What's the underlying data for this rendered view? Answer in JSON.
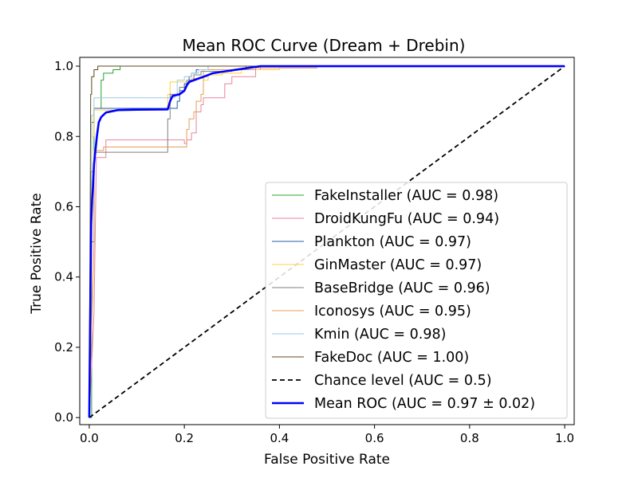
{
  "chart_data": {
    "type": "line",
    "title": "Mean ROC Curve (Dream + Drebin)",
    "xlabel": "False Positive Rate",
    "ylabel": "True Positive Rate",
    "xlim": [
      -0.02,
      1.02
    ],
    "ylim": [
      -0.02,
      1.025
    ],
    "xticks": [
      0.0,
      0.2,
      0.4,
      0.6,
      0.8,
      1.0
    ],
    "yticks": [
      0.0,
      0.2,
      0.4,
      0.6,
      0.8,
      1.0
    ],
    "tick_labels_x": [
      "0.0",
      "0.2",
      "0.4",
      "0.6",
      "0.8",
      "1.0"
    ],
    "tick_labels_y": [
      "0.0",
      "0.2",
      "0.4",
      "0.6",
      "0.8",
      "1.0"
    ],
    "legend_position": "lower right",
    "series": [
      {
        "name": "FakeInstaller",
        "label": "FakeInstaller (AUC = 0.98)",
        "color": "#2ca02c",
        "style": "solid",
        "width": 1,
        "points": [
          [
            0,
            0
          ],
          [
            0.005,
            0.0
          ],
          [
            0.005,
            0.5
          ],
          [
            0.01,
            0.5
          ],
          [
            0.01,
            0.88
          ],
          [
            0.025,
            0.88
          ],
          [
            0.025,
            0.96
          ],
          [
            0.03,
            0.96
          ],
          [
            0.03,
            0.98
          ],
          [
            0.05,
            0.98
          ],
          [
            0.05,
            0.99
          ],
          [
            0.065,
            0.99
          ],
          [
            0.065,
            1.0
          ],
          [
            1,
            1
          ]
        ]
      },
      {
        "name": "DroidKungFu",
        "label": "DroidKungFu (AUC = 0.94)",
        "color": "#e8839b",
        "style": "solid",
        "width": 1,
        "points": [
          [
            0,
            0
          ],
          [
            0.01,
            0.3
          ],
          [
            0.015,
            0.74
          ],
          [
            0.035,
            0.74
          ],
          [
            0.035,
            0.79
          ],
          [
            0.2,
            0.79
          ],
          [
            0.2,
            0.78
          ],
          [
            0.205,
            0.78
          ],
          [
            0.205,
            0.79
          ],
          [
            0.215,
            0.79
          ],
          [
            0.215,
            0.81
          ],
          [
            0.225,
            0.81
          ],
          [
            0.225,
            0.87
          ],
          [
            0.235,
            0.87
          ],
          [
            0.235,
            0.89
          ],
          [
            0.24,
            0.89
          ],
          [
            0.24,
            0.91
          ],
          [
            0.285,
            0.91
          ],
          [
            0.285,
            0.95
          ],
          [
            0.3,
            0.95
          ],
          [
            0.3,
            0.97
          ],
          [
            0.35,
            0.97
          ],
          [
            0.35,
            0.99
          ],
          [
            0.36,
            0.99
          ],
          [
            0.36,
            1.0
          ],
          [
            1,
            1
          ]
        ]
      },
      {
        "name": "Plankton",
        "label": "Plankton (AUC = 0.97)",
        "color": "#1f5fa8",
        "style": "solid",
        "width": 1,
        "points": [
          [
            0,
            0
          ],
          [
            0.005,
            0.5
          ],
          [
            0.005,
            0.84
          ],
          [
            0.01,
            0.84
          ],
          [
            0.01,
            0.88
          ],
          [
            0.185,
            0.88
          ],
          [
            0.185,
            0.9
          ],
          [
            0.19,
            0.9
          ],
          [
            0.19,
            0.93
          ],
          [
            0.2,
            0.93
          ],
          [
            0.2,
            0.95
          ],
          [
            0.21,
            0.95
          ],
          [
            0.21,
            0.97
          ],
          [
            0.215,
            0.97
          ],
          [
            0.215,
            0.98
          ],
          [
            0.225,
            0.98
          ],
          [
            0.225,
            0.99
          ],
          [
            0.25,
            0.99
          ],
          [
            0.25,
            1.0
          ],
          [
            1,
            1
          ]
        ]
      },
      {
        "name": "GinMaster",
        "label": "GinMaster (AUC = 0.97)",
        "color": "#ffd23f",
        "style": "solid",
        "width": 1,
        "points": [
          [
            0,
            0
          ],
          [
            0.005,
            0.4
          ],
          [
            0.005,
            0.8
          ],
          [
            0.01,
            0.8
          ],
          [
            0.01,
            0.875
          ],
          [
            0.165,
            0.875
          ],
          [
            0.165,
            0.92
          ],
          [
            0.17,
            0.92
          ],
          [
            0.17,
            0.955
          ],
          [
            0.215,
            0.955
          ],
          [
            0.215,
            0.965
          ],
          [
            0.24,
            0.965
          ],
          [
            0.24,
            0.96
          ],
          [
            0.25,
            0.96
          ],
          [
            0.25,
            0.975
          ],
          [
            0.28,
            0.975
          ],
          [
            0.28,
            0.98
          ],
          [
            0.32,
            0.98
          ],
          [
            0.32,
            0.99
          ],
          [
            0.4,
            0.99
          ],
          [
            0.4,
            0.995
          ],
          [
            0.48,
            0.995
          ]
        ]
      },
      {
        "name": "BaseBridge",
        "label": "BaseBridge (AUC = 0.96)",
        "color": "#7f7f7f",
        "style": "solid",
        "width": 1,
        "points": [
          [
            0,
            0
          ],
          [
            0.003,
            0.55
          ],
          [
            0.003,
            0.7
          ],
          [
            0.01,
            0.7
          ],
          [
            0.01,
            0.755
          ],
          [
            0.165,
            0.755
          ],
          [
            0.165,
            0.85
          ],
          [
            0.17,
            0.85
          ],
          [
            0.17,
            0.92
          ],
          [
            0.19,
            0.92
          ],
          [
            0.19,
            0.94
          ],
          [
            0.205,
            0.94
          ],
          [
            0.205,
            0.96
          ],
          [
            0.22,
            0.96
          ],
          [
            0.22,
            0.975
          ],
          [
            0.235,
            0.975
          ],
          [
            0.235,
            0.985
          ],
          [
            0.3,
            0.985
          ],
          [
            0.3,
            0.99
          ],
          [
            0.33,
            0.99
          ],
          [
            0.33,
            1.0
          ],
          [
            1,
            1
          ]
        ]
      },
      {
        "name": "Iconosys",
        "label": "Iconosys (AUC = 0.95)",
        "color": "#e69c5c",
        "style": "solid",
        "width": 1,
        "points": [
          [
            0,
            0
          ],
          [
            0.01,
            0.5
          ],
          [
            0.01,
            0.76
          ],
          [
            0.03,
            0.76
          ],
          [
            0.03,
            0.77
          ],
          [
            0.205,
            0.77
          ],
          [
            0.205,
            0.82
          ],
          [
            0.21,
            0.82
          ],
          [
            0.21,
            0.85
          ],
          [
            0.22,
            0.85
          ],
          [
            0.22,
            0.87
          ],
          [
            0.225,
            0.87
          ],
          [
            0.225,
            0.9
          ],
          [
            0.235,
            0.9
          ],
          [
            0.235,
            0.92
          ],
          [
            0.24,
            0.92
          ],
          [
            0.24,
            0.99
          ],
          [
            0.35,
            0.99
          ],
          [
            0.35,
            0.995
          ],
          [
            0.48,
            0.995
          ]
        ]
      },
      {
        "name": "Kmin",
        "label": "Kmin (AUC = 0.98)",
        "color": "#9ecae1",
        "style": "solid",
        "width": 1,
        "points": [
          [
            0,
            0
          ],
          [
            0.005,
            0.6
          ],
          [
            0.005,
            0.86
          ],
          [
            0.01,
            0.86
          ],
          [
            0.01,
            0.91
          ],
          [
            0.18,
            0.91
          ],
          [
            0.18,
            0.92
          ],
          [
            0.185,
            0.92
          ],
          [
            0.185,
            0.96
          ],
          [
            0.2,
            0.96
          ],
          [
            0.2,
            0.97
          ],
          [
            0.215,
            0.97
          ],
          [
            0.215,
            0.98
          ],
          [
            0.23,
            0.98
          ],
          [
            0.23,
            0.99
          ],
          [
            0.25,
            0.99
          ],
          [
            0.25,
            1.0
          ],
          [
            1,
            1
          ]
        ]
      },
      {
        "name": "FakeDoc",
        "label": "FakeDoc (AUC = 1.00)",
        "color": "#5c4a1e",
        "style": "solid",
        "width": 1,
        "points": [
          [
            0,
            0
          ],
          [
            0.003,
            0.92
          ],
          [
            0.005,
            0.92
          ],
          [
            0.005,
            0.97
          ],
          [
            0.01,
            0.97
          ],
          [
            0.01,
            0.99
          ],
          [
            0.018,
            0.99
          ],
          [
            0.018,
            1.0
          ],
          [
            1,
            1
          ]
        ]
      },
      {
        "name": "Chance level",
        "label": "Chance level (AUC = 0.5)",
        "color": "#000000",
        "style": "dashed",
        "width": 1.8,
        "points": [
          [
            0,
            0
          ],
          [
            1,
            1
          ]
        ]
      },
      {
        "name": "Mean ROC",
        "label": "Mean ROC (AUC = 0.97 ± 0.02)",
        "color": "#0000ff",
        "style": "solid",
        "width": 2.6,
        "points": [
          [
            0,
            0
          ],
          [
            0.002,
            0.3
          ],
          [
            0.004,
            0.55
          ],
          [
            0.006,
            0.62
          ],
          [
            0.008,
            0.66
          ],
          [
            0.01,
            0.72
          ],
          [
            0.013,
            0.76
          ],
          [
            0.016,
            0.8
          ],
          [
            0.02,
            0.84
          ],
          [
            0.025,
            0.855
          ],
          [
            0.035,
            0.868
          ],
          [
            0.06,
            0.875
          ],
          [
            0.1,
            0.876
          ],
          [
            0.165,
            0.877
          ],
          [
            0.17,
            0.9
          ],
          [
            0.175,
            0.915
          ],
          [
            0.19,
            0.92
          ],
          [
            0.2,
            0.93
          ],
          [
            0.205,
            0.945
          ],
          [
            0.21,
            0.955
          ],
          [
            0.23,
            0.965
          ],
          [
            0.245,
            0.972
          ],
          [
            0.26,
            0.98
          ],
          [
            0.285,
            0.985
          ],
          [
            0.32,
            0.992
          ],
          [
            0.36,
            1.0
          ],
          [
            0.5,
            1.0
          ],
          [
            1,
            1.0
          ]
        ]
      }
    ]
  }
}
